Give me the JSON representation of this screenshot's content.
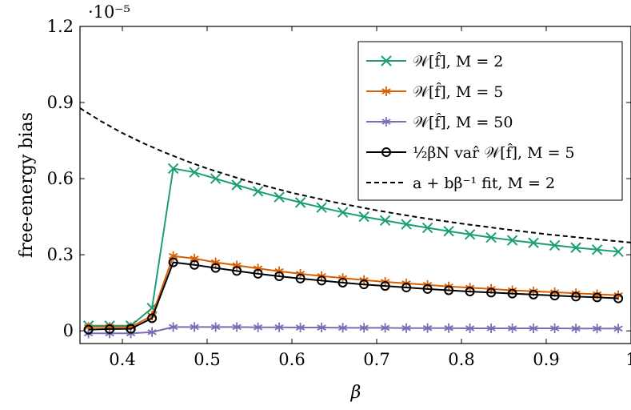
{
  "chart_data": {
    "type": "line",
    "xlabel": "β",
    "ylabel": "free-energy bias",
    "y_scale_label": "·10⁻⁵",
    "xlim": [
      0.35,
      1.0
    ],
    "ylim": [
      -0.05,
      1.2
    ],
    "x_ticks": [
      0.4,
      0.5,
      0.6,
      0.7,
      0.8,
      0.9,
      1.0
    ],
    "x_tick_labels": [
      "0.4",
      "0.5",
      "0.6",
      "0.7",
      "0.8",
      "0.9",
      "1"
    ],
    "y_ticks": [
      0,
      0.3,
      0.6,
      0.9,
      1.2
    ],
    "y_tick_labels": [
      "0",
      "0.3",
      "0.6",
      "0.9",
      "1.2"
    ],
    "legend_position": "top-right",
    "grid": false,
    "series": [
      {
        "name": "𝒲[f̂], M = 2",
        "color": "#1b9e77",
        "marker": "x",
        "x": [
          0.36,
          0.385,
          0.41,
          0.435,
          0.46,
          0.485,
          0.51,
          0.535,
          0.56,
          0.585,
          0.61,
          0.635,
          0.66,
          0.685,
          0.71,
          0.735,
          0.76,
          0.785,
          0.81,
          0.835,
          0.86,
          0.885,
          0.91,
          0.935,
          0.96,
          0.985
        ],
        "y": [
          0.02,
          0.02,
          0.02,
          0.09,
          0.64,
          0.625,
          0.6,
          0.575,
          0.55,
          0.527,
          0.506,
          0.486,
          0.467,
          0.45,
          0.435,
          0.42,
          0.406,
          0.393,
          0.38,
          0.368,
          0.357,
          0.347,
          0.337,
          0.328,
          0.32,
          0.312
        ]
      },
      {
        "name": "𝒲[f̂], M = 5",
        "color": "#d95f02",
        "marker": "star",
        "x": [
          0.36,
          0.385,
          0.41,
          0.435,
          0.46,
          0.485,
          0.51,
          0.535,
          0.56,
          0.585,
          0.61,
          0.635,
          0.66,
          0.685,
          0.71,
          0.735,
          0.76,
          0.785,
          0.81,
          0.835,
          0.86,
          0.885,
          0.91,
          0.935,
          0.96,
          0.985
        ],
        "y": [
          0.015,
          0.015,
          0.015,
          0.06,
          0.295,
          0.285,
          0.27,
          0.258,
          0.246,
          0.235,
          0.225,
          0.216,
          0.208,
          0.2,
          0.193,
          0.187,
          0.181,
          0.175,
          0.17,
          0.165,
          0.16,
          0.156,
          0.152,
          0.148,
          0.144,
          0.14
        ]
      },
      {
        "name": "𝒲[f̂], M = 50",
        "color": "#7570b3",
        "marker": "star",
        "x": [
          0.36,
          0.385,
          0.41,
          0.435,
          0.46,
          0.485,
          0.51,
          0.535,
          0.56,
          0.585,
          0.61,
          0.635,
          0.66,
          0.685,
          0.71,
          0.735,
          0.76,
          0.785,
          0.81,
          0.835,
          0.86,
          0.885,
          0.91,
          0.935,
          0.96,
          0.985
        ],
        "y": [
          -0.01,
          -0.01,
          -0.01,
          -0.005,
          0.015,
          0.015,
          0.015,
          0.015,
          0.014,
          0.014,
          0.013,
          0.013,
          0.012,
          0.012,
          0.012,
          0.011,
          0.011,
          0.011,
          0.01,
          0.01,
          0.01,
          0.01,
          0.01,
          0.009,
          0.009,
          0.009
        ]
      },
      {
        "name": "½βN var̂ 𝒲[f̂], M = 5",
        "color": "#000000",
        "marker": "circle",
        "x": [
          0.36,
          0.385,
          0.41,
          0.435,
          0.46,
          0.485,
          0.51,
          0.535,
          0.56,
          0.585,
          0.61,
          0.635,
          0.66,
          0.685,
          0.71,
          0.735,
          0.76,
          0.785,
          0.81,
          0.835,
          0.86,
          0.885,
          0.91,
          0.935,
          0.96,
          0.985
        ],
        "y": [
          0.005,
          0.007,
          0.008,
          0.05,
          0.27,
          0.26,
          0.248,
          0.236,
          0.225,
          0.215,
          0.206,
          0.198,
          0.19,
          0.183,
          0.177,
          0.171,
          0.165,
          0.16,
          0.155,
          0.151,
          0.147,
          0.143,
          0.139,
          0.135,
          0.132,
          0.128
        ]
      },
      {
        "name": "a + bβ⁻¹ fit,    M = 2",
        "color": "#000000",
        "marker": "none",
        "dashed": true,
        "x": [
          0.35,
          0.375,
          0.4,
          0.425,
          0.45,
          0.475,
          0.5,
          0.55,
          0.6,
          0.65,
          0.7,
          0.75,
          0.8,
          0.85,
          0.9,
          0.95,
          1.0
        ],
        "y": [
          0.878,
          0.826,
          0.78,
          0.739,
          0.703,
          0.67,
          0.64,
          0.588,
          0.544,
          0.507,
          0.475,
          0.447,
          0.423,
          0.401,
          0.381,
          0.364,
          0.348
        ]
      }
    ]
  }
}
